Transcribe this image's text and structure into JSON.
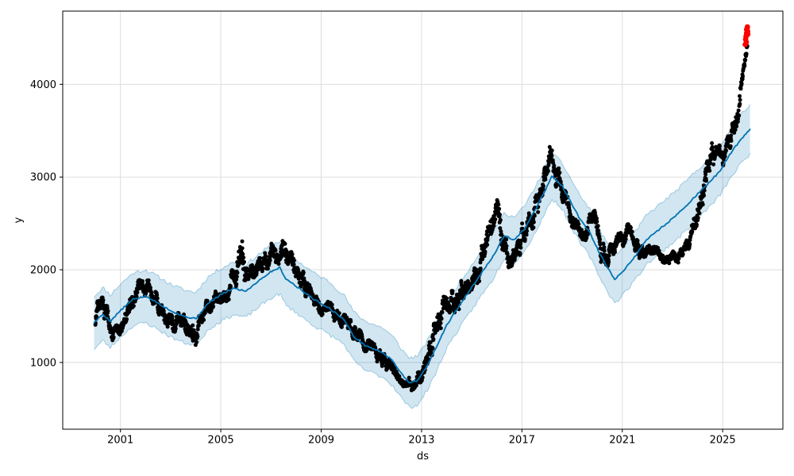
{
  "figure": {
    "background": "#ffffff",
    "description": "Prophet-style time-series forecast plot: observed daily points (black), forecast yhat line (blue) with uncertainty interval band (light blue), trailing anomaly points (red)"
  },
  "chart_data": {
    "type": "scatter",
    "title": "",
    "xlabel": "ds",
    "ylabel": "y",
    "xlim": [
      1998.7,
      2027.4
    ],
    "ylim": [
      280,
      4790
    ],
    "xticks": [
      2001,
      2005,
      2009,
      2013,
      2017,
      2021,
      2025
    ],
    "yticks": [
      1000,
      2000,
      3000,
      4000
    ],
    "grid": true,
    "legend": "none",
    "colors": {
      "observed": "#000000",
      "forecast_line": "#0072b2",
      "band_fill": "rgba(0,114,178,0.18)",
      "band_edge": "rgba(0,114,178,0.32)",
      "anomaly": "#ff0000",
      "grid": "#d9d9d9",
      "spine": "#000000",
      "tick_label": "#000000"
    },
    "forecast": {
      "description": "Keypoints of forecast line and uncertainty interval as [year, yhat_lower, yhat, yhat_upper]; rendered with linear interpolation plus small wiggle",
      "points": [
        [
          1999.95,
          1145,
          1430,
          1715
        ],
        [
          2000.3,
          1235,
          1520,
          1805
        ],
        [
          2000.6,
          1160,
          1445,
          1730
        ],
        [
          2001.0,
          1275,
          1560,
          1845
        ],
        [
          2001.5,
          1395,
          1680,
          1965
        ],
        [
          2002.0,
          1430,
          1715,
          2000
        ],
        [
          2002.5,
          1355,
          1640,
          1925
        ],
        [
          2003.0,
          1275,
          1560,
          1845
        ],
        [
          2003.5,
          1215,
          1500,
          1785
        ],
        [
          2004.0,
          1185,
          1470,
          1755
        ],
        [
          2004.5,
          1355,
          1640,
          1925
        ],
        [
          2005.0,
          1445,
          1730,
          2015
        ],
        [
          2005.5,
          1515,
          1800,
          2085
        ],
        [
          2006.0,
          1485,
          1770,
          2055
        ],
        [
          2006.5,
          1595,
          1880,
          2165
        ],
        [
          2007.0,
          1695,
          1980,
          2265
        ],
        [
          2007.35,
          1740,
          2025,
          2310
        ],
        [
          2007.6,
          1615,
          1900,
          2185
        ],
        [
          2007.9,
          1560,
          1845,
          2130
        ],
        [
          2008.3,
          1475,
          1760,
          2045
        ],
        [
          2008.8,
          1380,
          1665,
          1950
        ],
        [
          2009.3,
          1305,
          1590,
          1875
        ],
        [
          2009.9,
          1200,
          1465,
          1730
        ],
        [
          2010.3,
          1015,
          1280,
          1545
        ],
        [
          2010.7,
          925,
          1190,
          1455
        ],
        [
          2011.1,
          880,
          1145,
          1410
        ],
        [
          2011.5,
          835,
          1100,
          1365
        ],
        [
          2011.9,
          735,
          1000,
          1265
        ],
        [
          2012.2,
          615,
          880,
          1145
        ],
        [
          2012.5,
          520,
          785,
          1050
        ],
        [
          2012.8,
          535,
          800,
          1065
        ],
        [
          2013.0,
          600,
          865,
          1130
        ],
        [
          2013.3,
          735,
          1000,
          1265
        ],
        [
          2013.6,
          905,
          1170,
          1435
        ],
        [
          2014.0,
          1155,
          1400,
          1645
        ],
        [
          2014.4,
          1325,
          1570,
          1815
        ],
        [
          2014.95,
          1545,
          1790,
          2035
        ],
        [
          2015.4,
          1730,
          1975,
          2220
        ],
        [
          2015.8,
          1875,
          2120,
          2365
        ],
        [
          2016.3,
          2125,
          2370,
          2615
        ],
        [
          2016.7,
          2075,
          2320,
          2565
        ],
        [
          2017.1,
          2195,
          2440,
          2685
        ],
        [
          2017.6,
          2435,
          2680,
          2925
        ],
        [
          2018.2,
          2765,
          3010,
          3255
        ],
        [
          2018.6,
          2660,
          2905,
          3150
        ],
        [
          2019.0,
          2445,
          2700,
          2955
        ],
        [
          2019.35,
          2275,
          2530,
          2785
        ],
        [
          2019.7,
          2145,
          2400,
          2655
        ],
        [
          2020.0,
          1975,
          2230,
          2485
        ],
        [
          2020.35,
          1795,
          2050,
          2305
        ],
        [
          2020.7,
          1635,
          1890,
          2145
        ],
        [
          2021.1,
          1755,
          2010,
          2265
        ],
        [
          2021.5,
          1885,
          2140,
          2395
        ],
        [
          2021.95,
          2055,
          2320,
          2585
        ],
        [
          2022.4,
          2155,
          2420,
          2685
        ],
        [
          2022.9,
          2265,
          2530,
          2795
        ],
        [
          2023.4,
          2385,
          2650,
          2915
        ],
        [
          2023.9,
          2525,
          2790,
          3055
        ],
        [
          2024.4,
          2655,
          2920,
          3185
        ],
        [
          2024.9,
          2805,
          3070,
          3335
        ],
        [
          2025.3,
          2985,
          3250,
          3515
        ],
        [
          2025.7,
          3135,
          3400,
          3665
        ],
        [
          2026.1,
          3255,
          3520,
          3785
        ]
      ]
    },
    "observed": {
      "description": "Dense daily black scatter encoded as trajectory keypoints [year, mid_value, half_spread]; points are generated along this path with deterministic noise within the spread",
      "start_year": 2000.0,
      "end_year": 2025.99,
      "keypoints": [
        [
          2000.0,
          1500,
          190
        ],
        [
          2000.3,
          1630,
          150
        ],
        [
          2000.6,
          1420,
          160
        ],
        [
          2000.9,
          1270,
          130
        ],
        [
          2001.2,
          1470,
          150
        ],
        [
          2001.5,
          1640,
          150
        ],
        [
          2001.8,
          1860,
          130
        ],
        [
          2002.1,
          1800,
          140
        ],
        [
          2002.4,
          1670,
          150
        ],
        [
          2002.8,
          1540,
          160
        ],
        [
          2003.1,
          1400,
          160
        ],
        [
          2003.5,
          1470,
          140
        ],
        [
          2003.9,
          1270,
          210
        ],
        [
          2004.15,
          1400,
          160
        ],
        [
          2004.5,
          1610,
          130
        ],
        [
          2004.9,
          1690,
          120
        ],
        [
          2005.3,
          1790,
          150
        ],
        [
          2005.8,
          2090,
          310
        ],
        [
          2006.1,
          1930,
          160
        ],
        [
          2006.5,
          1990,
          150
        ],
        [
          2006.9,
          2130,
          160
        ],
        [
          2007.3,
          2210,
          170
        ],
        [
          2007.7,
          2150,
          180
        ],
        [
          2008.1,
          1980,
          180
        ],
        [
          2008.5,
          1750,
          160
        ],
        [
          2008.9,
          1630,
          140
        ],
        [
          2009.3,
          1560,
          130
        ],
        [
          2009.7,
          1490,
          130
        ],
        [
          2010.1,
          1390,
          120
        ],
        [
          2010.5,
          1260,
          120
        ],
        [
          2010.9,
          1160,
          110
        ],
        [
          2011.3,
          1060,
          100
        ],
        [
          2011.7,
          950,
          95
        ],
        [
          2012.1,
          850,
          90
        ],
        [
          2012.45,
          790,
          80
        ],
        [
          2012.75,
          760,
          100
        ],
        [
          2013.05,
          880,
          120
        ],
        [
          2013.35,
          1180,
          200
        ],
        [
          2013.65,
          1480,
          220
        ],
        [
          2014.0,
          1620,
          200
        ],
        [
          2014.4,
          1680,
          190
        ],
        [
          2014.8,
          1800,
          180
        ],
        [
          2015.2,
          1960,
          180
        ],
        [
          2015.6,
          2280,
          220
        ],
        [
          2015.95,
          2650,
          180
        ],
        [
          2016.3,
          2330,
          220
        ],
        [
          2016.6,
          2050,
          140
        ],
        [
          2016.9,
          2280,
          160
        ],
        [
          2017.2,
          2450,
          160
        ],
        [
          2017.5,
          2620,
          180
        ],
        [
          2017.8,
          2960,
          220
        ],
        [
          2018.1,
          3200,
          200
        ],
        [
          2018.4,
          3030,
          180
        ],
        [
          2018.7,
          2820,
          160
        ],
        [
          2019.0,
          2530,
          150
        ],
        [
          2019.3,
          2370,
          130
        ],
        [
          2019.6,
          2470,
          150
        ],
        [
          2019.9,
          2560,
          140
        ],
        [
          2020.2,
          2170,
          230
        ],
        [
          2020.5,
          2180,
          150
        ],
        [
          2020.8,
          2270,
          130
        ],
        [
          2021.2,
          2420,
          130
        ],
        [
          2021.5,
          2270,
          110
        ],
        [
          2021.8,
          2170,
          100
        ],
        [
          2022.1,
          2210,
          100
        ],
        [
          2022.5,
          2160,
          95
        ],
        [
          2022.9,
          2110,
          95
        ],
        [
          2023.3,
          2160,
          95
        ],
        [
          2023.65,
          2270,
          110
        ],
        [
          2023.95,
          2530,
          180
        ],
        [
          2024.25,
          2980,
          260
        ],
        [
          2024.55,
          3280,
          200
        ],
        [
          2024.85,
          3210,
          150
        ],
        [
          2025.1,
          3270,
          150
        ],
        [
          2025.35,
          3440,
          170
        ],
        [
          2025.6,
          3690,
          170
        ],
        [
          2025.75,
          3990,
          140
        ],
        [
          2025.85,
          4220,
          110
        ],
        [
          2025.97,
          4450,
          90
        ]
      ]
    },
    "anomaly_points": {
      "description": "Trailing red points [year, value]",
      "points": [
        [
          2025.9,
          4430
        ],
        [
          2025.915,
          4485
        ],
        [
          2025.93,
          4515
        ],
        [
          2025.94,
          4455
        ],
        [
          2025.95,
          4550
        ],
        [
          2025.955,
          4590
        ],
        [
          2025.965,
          4530
        ],
        [
          2025.975,
          4605
        ],
        [
          2025.985,
          4620
        ],
        [
          2025.995,
          4570
        ],
        [
          2026.0,
          4540
        ]
      ]
    }
  }
}
